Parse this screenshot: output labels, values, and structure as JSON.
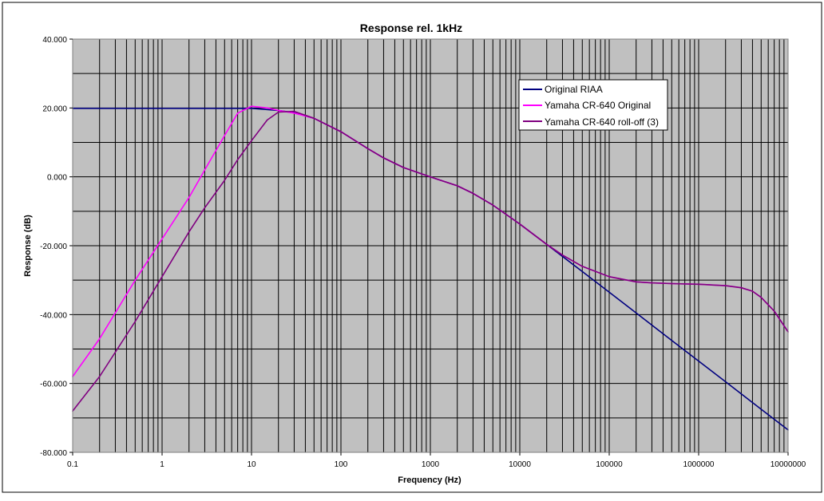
{
  "chart_data": {
    "type": "line",
    "title": "Response rel. 1kHz",
    "xlabel": "Frequency (Hz)",
    "ylabel": "Response (dB)",
    "x_scale": "log",
    "xlim": [
      0.1,
      10000000
    ],
    "ylim": [
      -80,
      40
    ],
    "x_tick_labels": [
      "0.1",
      "1",
      "10",
      "100",
      "1000",
      "10000",
      "100000",
      "1000000",
      "10000000"
    ],
    "y_tick_labels": [
      "40.000",
      "20.000",
      "0.000",
      "-20.000",
      "-40.000",
      "-60.000",
      "-80.000"
    ],
    "grid": true,
    "legend_position": "top-right",
    "plot_background": "#c0c0c0",
    "series": [
      {
        "name": "Original RIAA",
        "color": "#000080",
        "x": [
          0.1,
          1,
          5,
          10,
          20,
          30,
          50,
          100,
          200,
          300,
          500,
          1000,
          2000,
          3000,
          5000,
          10000,
          20000,
          50000,
          100000,
          200000,
          500000,
          1000000,
          2000000,
          5000000,
          10000000
        ],
        "y": [
          19.9,
          19.9,
          19.9,
          19.9,
          19.3,
          18.6,
          17.0,
          13.1,
          8.2,
          5.5,
          2.7,
          0.0,
          -2.6,
          -4.8,
          -8.2,
          -13.7,
          -19.6,
          -27.5,
          -33.5,
          -39.5,
          -47.5,
          -53.5,
          -59.5,
          -67.5,
          -73.5
        ]
      },
      {
        "name": "Yamaha CR-640 Original",
        "color": "#ff00ff",
        "x": [
          0.1,
          0.2,
          0.5,
          1,
          2,
          3,
          5,
          7,
          10,
          15,
          20,
          30,
          50,
          100,
          200,
          300,
          500,
          1000,
          2000,
          3000,
          5000,
          10000,
          20000,
          30000,
          50000,
          100000,
          200000,
          300000,
          500000,
          1000000,
          2000000,
          3000000,
          4000000,
          5000000,
          7000000,
          10000000
        ],
        "y": [
          -58,
          -47,
          -30,
          -18,
          -6,
          2,
          12,
          18.5,
          20.5,
          20.0,
          19.3,
          18.5,
          17.0,
          13.1,
          8.2,
          5.5,
          2.7,
          0.0,
          -2.6,
          -4.8,
          -8.2,
          -13.7,
          -19.6,
          -22.7,
          -26.0,
          -29.0,
          -30.5,
          -30.8,
          -31.0,
          -31.2,
          -31.6,
          -32.2,
          -33.2,
          -35.0,
          -39.0,
          -45.0
        ]
      },
      {
        "name": "Yamaha CR-640 roll-off (3)",
        "color": "#800080",
        "x": [
          0.1,
          0.2,
          0.5,
          1,
          2,
          3,
          5,
          7,
          10,
          15,
          20,
          30,
          50,
          100,
          200,
          300,
          500,
          1000,
          2000,
          3000,
          5000,
          10000,
          20000,
          30000,
          50000,
          100000,
          200000,
          300000,
          500000,
          1000000,
          2000000,
          3000000,
          4000000,
          5000000,
          7000000,
          10000000
        ],
        "y": [
          -68,
          -58,
          -42,
          -29,
          -16,
          -9,
          -1,
          5,
          10.5,
          16.5,
          18.8,
          19.0,
          17.0,
          13.1,
          8.2,
          5.5,
          2.7,
          0.0,
          -2.6,
          -4.8,
          -8.2,
          -13.7,
          -19.6,
          -22.7,
          -26.0,
          -29.0,
          -30.5,
          -30.8,
          -31.0,
          -31.2,
          -31.6,
          -32.2,
          -33.2,
          -35.0,
          -39.0,
          -45.0
        ]
      }
    ]
  }
}
